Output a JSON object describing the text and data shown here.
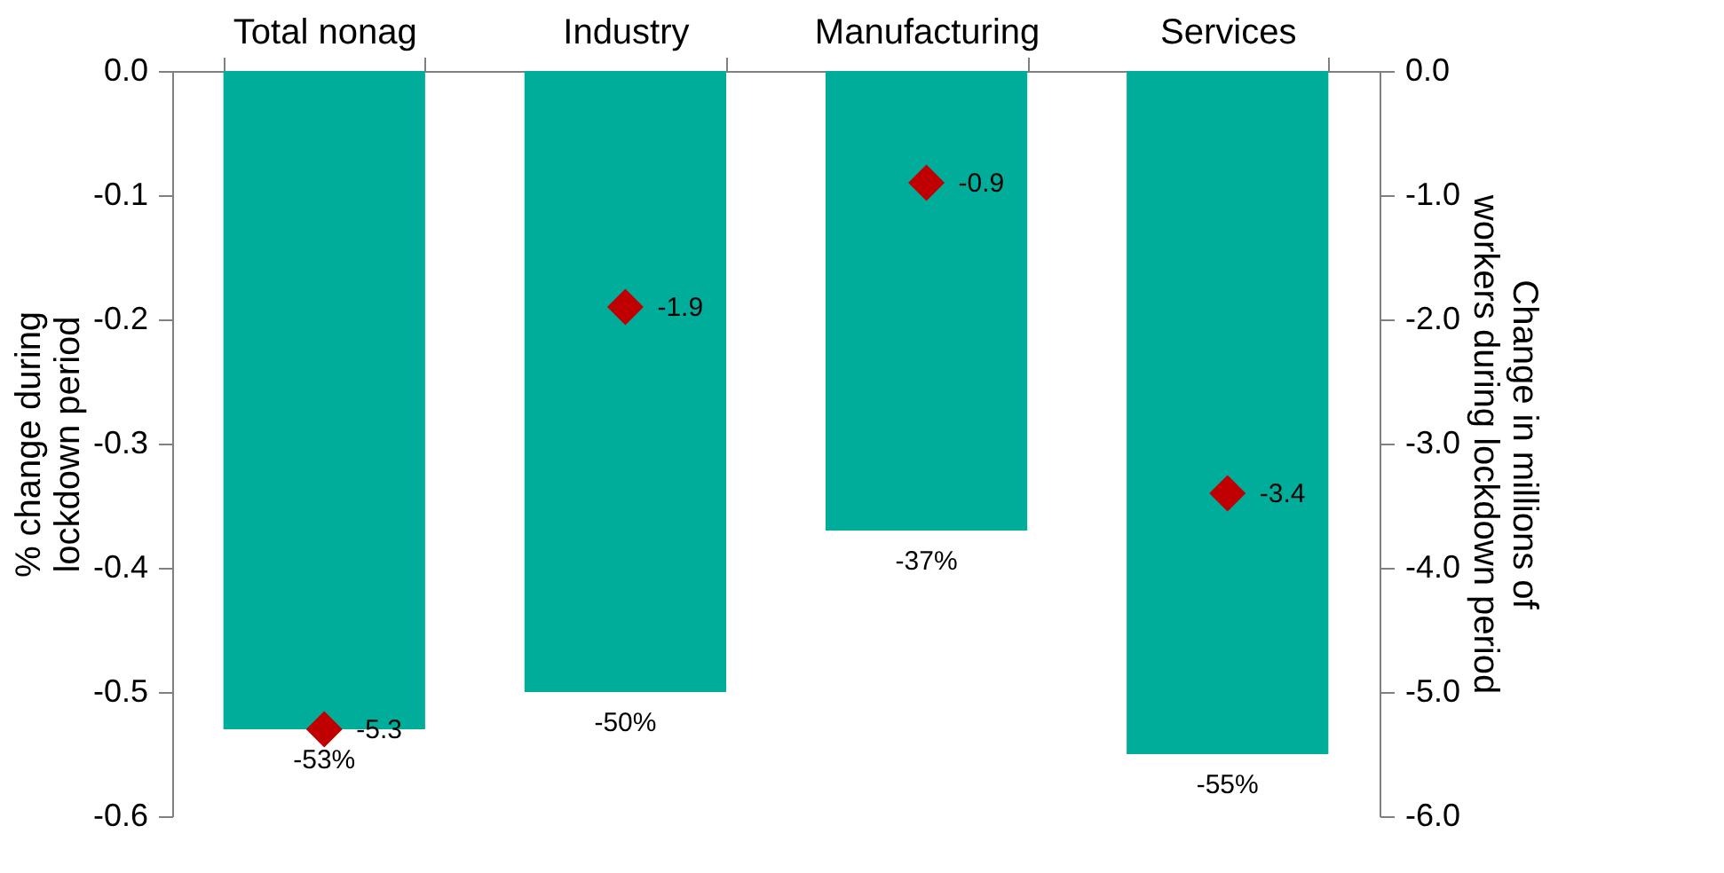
{
  "chart_data": {
    "type": "bar",
    "categories": [
      "Total nonag",
      "Industry",
      "Manufacturing",
      "Services"
    ],
    "ylabel": "% change during lockdown period",
    "y2label": "Change in millions of workers during lockdown period",
    "ylim": [
      -0.6,
      0
    ],
    "yticks": [
      {
        "value": 0,
        "label": "0.0"
      },
      -0.1,
      -0.2,
      -0.3,
      -0.4,
      -0.5,
      -0.6
    ],
    "y2lim": [
      -6,
      0
    ],
    "y2ticks": [
      {
        "value": 0,
        "label": "0.0"
      },
      {
        "value": -1,
        "label": "-1.0"
      },
      {
        "value": -2,
        "label": "-2.0"
      },
      {
        "value": -3,
        "label": "-3.0"
      },
      {
        "value": -4,
        "label": "-4.0"
      },
      {
        "value": -5,
        "label": "-5.0"
      },
      {
        "value": -6,
        "label": "-6.0"
      }
    ],
    "marker": "diamond",
    "series": [
      {
        "color": "#00ad9a",
        "values": [
          -0.53,
          -0.5,
          -0.37,
          -0.55
        ],
        "value_labels": [
          "-53%",
          "-50%",
          "-37%",
          "-55%"
        ]
      },
      {
        "type": "scatter",
        "axis": "y2",
        "color": "#c00000",
        "values": [
          -5.3,
          -1.9,
          -0.9,
          -3.4
        ],
        "value_labels": [
          "-5.3",
          "-1.9",
          "-0.9",
          "-3.4"
        ]
      }
    ]
  }
}
